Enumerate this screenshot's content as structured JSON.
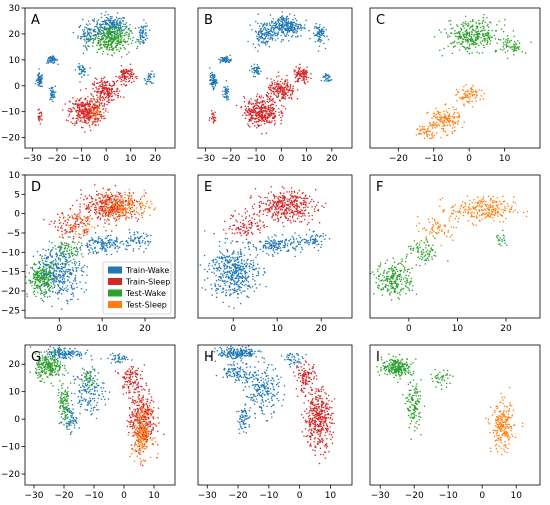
{
  "colors": {
    "Train-Wake": "#1f77b4",
    "Train-Sleep": "#d62728",
    "Test-Wake": "#2ca02c",
    "Test-Sleep": "#ff7f0e"
  },
  "chart_data": [
    {
      "type": "scatter",
      "panel": "A",
      "xlim": [
        -33,
        28
      ],
      "ylim": [
        -24,
        30
      ],
      "xticks": [
        -30,
        -20,
        -10,
        0,
        10,
        20
      ],
      "yticks": [
        -20,
        -10,
        0,
        10,
        20,
        30
      ],
      "series": [
        {
          "name": "Train-Wake",
          "clusters": [
            [
              2,
              23,
              6,
              4,
              200
            ],
            [
              -7,
              20,
              4,
              4,
              90
            ],
            [
              -22,
              10,
              2,
              1.2,
              60
            ],
            [
              -27,
              2,
              1.2,
              2.5,
              70
            ],
            [
              15,
              20,
              2,
              4,
              60
            ],
            [
              18,
              3,
              2,
              2,
              30
            ],
            [
              -10,
              6,
              2,
              2,
              40
            ],
            [
              -22,
              -3,
              1.2,
              2.5,
              40
            ]
          ]
        },
        {
          "name": "Train-Sleep",
          "clusters": [
            [
              -8,
              -10,
              6,
              5,
              350
            ],
            [
              0,
              -2,
              5,
              4,
              200
            ],
            [
              8,
              4,
              3,
              3,
              100
            ],
            [
              -27,
              -12,
              1,
              2,
              25
            ]
          ]
        },
        {
          "name": "Test-Wake",
          "clusters": [
            [
              2,
              18,
              7,
              5,
              320
            ]
          ]
        },
        {
          "name": "Test-Sleep",
          "clusters": [
            [
              -5,
              -10,
              5,
              5,
              40
            ]
          ]
        }
      ]
    },
    {
      "type": "scatter",
      "panel": "B",
      "xlim": [
        -33,
        28
      ],
      "ylim": [
        -24,
        30
      ],
      "xticks": [
        -30,
        -20,
        -10,
        0,
        10,
        20
      ],
      "yticks": [],
      "series": [
        {
          "name": "Train-Wake",
          "clusters": [
            [
              2,
              23,
              6,
              4,
              260
            ],
            [
              -7,
              20,
              4,
              4,
              120
            ],
            [
              -22,
              10,
              2,
              1.2,
              60
            ],
            [
              -27,
              2,
              1.2,
              2.5,
              70
            ],
            [
              15,
              20,
              2,
              4,
              70
            ],
            [
              18,
              3,
              2,
              2,
              30
            ],
            [
              -10,
              6,
              2,
              2,
              40
            ],
            [
              -22,
              -3,
              1.2,
              2.5,
              40
            ]
          ]
        },
        {
          "name": "Train-Sleep",
          "clusters": [
            [
              -8,
              -10,
              6,
              5,
              350
            ],
            [
              0,
              -2,
              5,
              4,
              200
            ],
            [
              8,
              4,
              3,
              3,
              100
            ],
            [
              -27,
              -12,
              1,
              2,
              25
            ]
          ]
        }
      ]
    },
    {
      "type": "scatter",
      "panel": "C",
      "xlim": [
        -28,
        20
      ],
      "ylim": [
        -22,
        29
      ],
      "xticks": [
        -20,
        -10,
        0,
        10
      ],
      "yticks": [],
      "series": [
        {
          "name": "Test-Wake",
          "clusters": [
            [
              1,
              19,
              7,
              5,
              320
            ],
            [
              12,
              15,
              3,
              3,
              60
            ]
          ]
        },
        {
          "name": "Test-Sleep",
          "clusters": [
            [
              -7,
              -12,
              4,
              4,
              150
            ],
            [
              0,
              -3,
              3,
              3,
              80
            ],
            [
              -12,
              -16,
              3,
              2,
              50
            ]
          ]
        }
      ]
    },
    {
      "type": "scatter",
      "panel": "D",
      "xlim": [
        -8,
        27
      ],
      "ylim": [
        -27,
        10
      ],
      "xticks": [
        0,
        10,
        20
      ],
      "yticks": [
        -25,
        -20,
        -15,
        -10,
        -5,
        0,
        5,
        10
      ],
      "series": [
        {
          "name": "Train-Wake",
          "clusters": [
            [
              0,
              -15,
              5,
              6,
              350
            ],
            [
              10,
              -8,
              5,
              2,
              150
            ],
            [
              18,
              -7,
              3,
              2,
              60
            ]
          ]
        },
        {
          "name": "Train-Sleep",
          "clusters": [
            [
              12,
              2,
              6,
              3.5,
              350
            ],
            [
              3,
              -3,
              4,
              3,
              100
            ]
          ]
        },
        {
          "name": "Test-Wake",
          "clusters": [
            [
              -4,
              -17,
              3,
              4,
              230
            ],
            [
              2,
              -10,
              3,
              3,
              80
            ]
          ]
        },
        {
          "name": "Test-Sleep",
          "clusters": [
            [
              15,
              2,
              6,
              3,
              200
            ],
            [
              5,
              -3,
              4,
              3,
              60
            ]
          ]
        }
      ],
      "legend": {
        "entries": [
          "Train-Wake",
          "Train-Sleep",
          "Test-Wake",
          "Test-Sleep"
        ],
        "loc": "lower-right"
      }
    },
    {
      "type": "scatter",
      "panel": "E",
      "xlim": [
        -8,
        27
      ],
      "ylim": [
        -27,
        10
      ],
      "xticks": [
        0,
        10,
        20
      ],
      "yticks": [],
      "series": [
        {
          "name": "Train-Wake",
          "clusters": [
            [
              0,
              -15,
              5,
              6,
              450
            ],
            [
              10,
              -8,
              5,
              2,
              150
            ],
            [
              18,
              -7,
              3,
              2,
              60
            ]
          ]
        },
        {
          "name": "Train-Sleep",
          "clusters": [
            [
              12,
              2,
              6,
              3.5,
              380
            ],
            [
              3,
              -3,
              4,
              3,
              100
            ]
          ]
        }
      ]
    },
    {
      "type": "scatter",
      "panel": "F",
      "xlim": [
        -8,
        27
      ],
      "ylim": [
        -27,
        10
      ],
      "xticks": [
        0,
        10,
        20
      ],
      "yticks": [],
      "series": [
        {
          "name": "Test-Wake",
          "clusters": [
            [
              -3,
              -17,
              3.5,
              4,
              230
            ],
            [
              3,
              -10,
              3,
              3,
              80
            ],
            [
              19,
              -7,
              1,
              2,
              20
            ]
          ]
        },
        {
          "name": "Test-Sleep",
          "clusters": [
            [
              15,
              1,
              6,
              3,
              250
            ],
            [
              6,
              -4,
              4,
              3,
              60
            ]
          ]
        }
      ]
    },
    {
      "type": "scatter",
      "panel": "G",
      "xlim": [
        -33,
        17
      ],
      "ylim": [
        -24,
        27
      ],
      "xticks": [
        -30,
        -20,
        -10,
        0,
        10
      ],
      "yticks": [
        -20,
        -10,
        0,
        10,
        20
      ],
      "series": [
        {
          "name": "Train-Wake",
          "clusters": [
            [
              -20,
              24,
              6,
              2,
              150
            ],
            [
              -12,
              10,
              5,
              8,
              150
            ],
            [
              -18,
              0,
              2,
              4,
              60
            ],
            [
              -2,
              22,
              3,
              2,
              40
            ]
          ]
        },
        {
          "name": "Train-Sleep",
          "clusters": [
            [
              6,
              0,
              4,
              10,
              350
            ],
            [
              2,
              15,
              3,
              5,
              100
            ]
          ]
        },
        {
          "name": "Test-Wake",
          "clusters": [
            [
              -25,
              19,
              4,
              4,
              230
            ],
            [
              -20,
              5,
              2,
              8,
              100
            ],
            [
              -12,
              15,
              3,
              3,
              40
            ]
          ]
        },
        {
          "name": "Test-Sleep",
          "clusters": [
            [
              6,
              -5,
              3,
              8,
              200
            ]
          ]
        }
      ]
    },
    {
      "type": "scatter",
      "panel": "H",
      "xlim": [
        -33,
        17
      ],
      "ylim": [
        -24,
        27
      ],
      "xticks": [
        -30,
        -20,
        -10,
        0,
        10
      ],
      "yticks": [],
      "series": [
        {
          "name": "Train-Wake",
          "clusters": [
            [
              -20,
              24,
              6,
              2,
              200
            ],
            [
              -12,
              10,
              5,
              8,
              200
            ],
            [
              -20,
              17,
              5,
              3,
              100
            ],
            [
              -18,
              0,
              2,
              4,
              60
            ],
            [
              -2,
              22,
              3,
              2,
              40
            ]
          ]
        },
        {
          "name": "Train-Sleep",
          "clusters": [
            [
              6,
              0,
              4,
              10,
              400
            ],
            [
              2,
              15,
              3,
              5,
              100
            ]
          ]
        }
      ]
    },
    {
      "type": "scatter",
      "panel": "I",
      "xlim": [
        -33,
        17
      ],
      "ylim": [
        -24,
        27
      ],
      "xticks": [
        -30,
        -20,
        -10,
        0,
        10
      ],
      "yticks": [],
      "series": [
        {
          "name": "Test-Wake",
          "clusters": [
            [
              -25,
              19,
              4,
              3,
              230
            ],
            [
              -20,
              5,
              2,
              8,
              120
            ],
            [
              -12,
              15,
              3,
              3,
              40
            ]
          ]
        },
        {
          "name": "Test-Sleep",
          "clusters": [
            [
              6,
              -3,
              3,
              8,
              220
            ]
          ]
        }
      ]
    }
  ]
}
